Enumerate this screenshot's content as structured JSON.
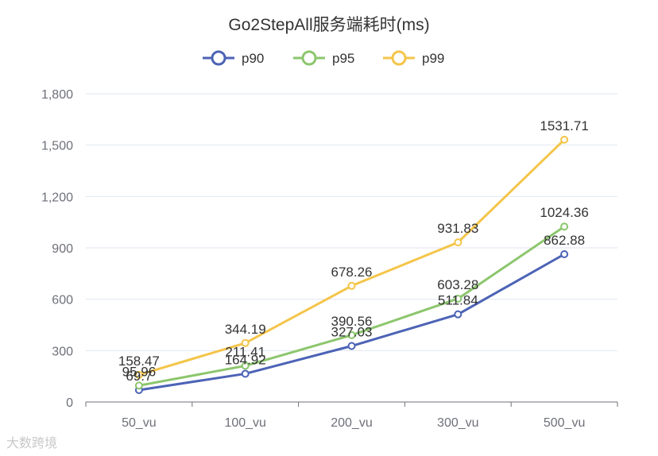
{
  "chart_data": {
    "type": "line",
    "title": "Go2StepAll服务端耗时(ms)",
    "categories": [
      "50_vu",
      "100_vu",
      "200_vu",
      "300_vu",
      "500_vu"
    ],
    "series": [
      {
        "name": "p90",
        "color": "#4c63b6",
        "values": [
          69.7,
          164.92,
          327.03,
          511.84,
          862.88
        ],
        "labels": [
          "69.7",
          "164.92",
          "327.03",
          "511.84",
          "862.88"
        ]
      },
      {
        "name": "p95",
        "color": "#8cc66d",
        "values": [
          95.96,
          211.41,
          390.56,
          603.28,
          1024.36
        ],
        "labels": [
          "95.96",
          "211.41",
          "390.56",
          "603.28",
          "1024.36"
        ]
      },
      {
        "name": "p99",
        "color": "#f4c54a",
        "values": [
          158.47,
          344.19,
          678.26,
          931.83,
          1531.71
        ],
        "labels": [
          "158.47",
          "344.19",
          "678.26",
          "931.83",
          "1531.71"
        ]
      }
    ],
    "yticks": [
      "0",
      "300",
      "600",
      "900",
      "1,200",
      "1,500",
      "1,800"
    ],
    "ylim": [
      0,
      1800
    ],
    "legend": "top",
    "grid": true
  },
  "watermark": "大数跨境"
}
